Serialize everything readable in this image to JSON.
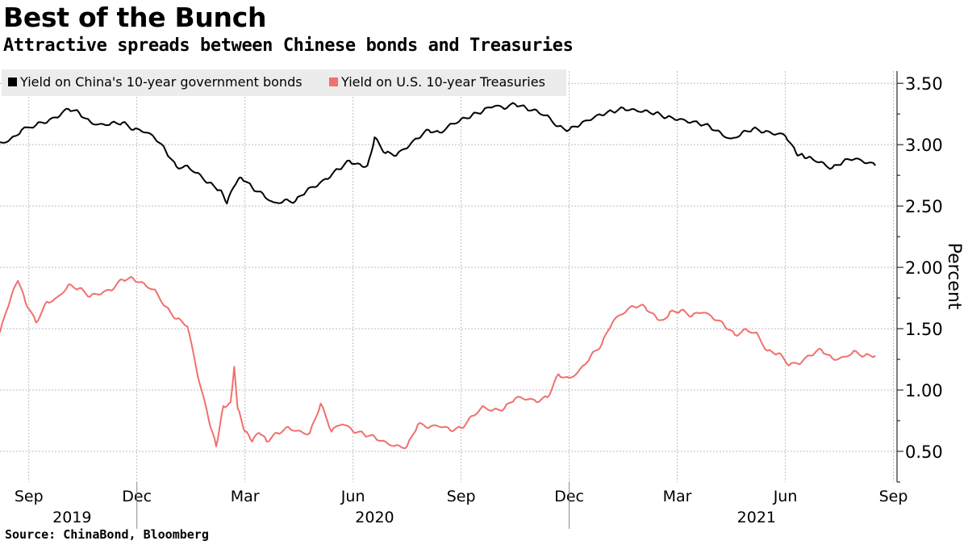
{
  "title": "Best of the Bunch",
  "subtitle": "Attractive spreads between Chinese bonds and Treasuries",
  "source": "Source:  ChinaBond, Bloomberg",
  "colors": {
    "china": "#000000",
    "us": "#f0706e",
    "grid": "#bdbdbd",
    "legend_bg": "#ececec"
  },
  "chart_data": {
    "type": "line",
    "title": "Best of the Bunch",
    "subtitle": "Attractive spreads between Chinese bonds and Treasuries",
    "ylabel": "Percent",
    "ylim": [
      0.25,
      3.6
    ],
    "xlim": [
      -0.3,
      24.6
    ],
    "y_ticks": [
      0.5,
      1.0,
      1.5,
      2.0,
      2.5,
      3.0,
      3.5
    ],
    "y_tick_labels": [
      "0.50",
      "1.00",
      "1.50",
      "2.00",
      "2.50",
      "3.00",
      "3.50"
    ],
    "x_ticks": [
      {
        "label": "Sep",
        "m": 0.5
      },
      {
        "label": "Dec",
        "m": 3.5
      },
      {
        "label": "Mar",
        "m": 6.5
      },
      {
        "label": "Jun",
        "m": 9.5
      },
      {
        "label": "Sep",
        "m": 12.5
      },
      {
        "label": "Dec",
        "m": 15.5
      },
      {
        "label": "Mar",
        "m": 18.5
      },
      {
        "label": "Jun",
        "m": 21.5
      },
      {
        "label": "Sep",
        "m": 24.5
      }
    ],
    "year_labels": [
      {
        "label": "2019",
        "m": 1.7
      },
      {
        "label": "2020",
        "m": 10.1
      },
      {
        "label": "2021",
        "m": 20.7
      }
    ],
    "legend_position": "top-left",
    "series": [
      {
        "name": "Yield on China's 10-year government bonds",
        "color": "#000000",
        "x": [
          -0.3,
          0.0,
          0.3,
          0.7,
          1.0,
          1.3,
          1.6,
          1.9,
          2.2,
          2.5,
          2.8,
          3.1,
          3.4,
          3.7,
          4.0,
          4.3,
          4.6,
          4.9,
          5.2,
          5.5,
          5.8,
          6.0,
          6.2,
          6.4,
          6.7,
          7.0,
          7.3,
          7.6,
          7.9,
          8.2,
          8.5,
          8.8,
          9.1,
          9.4,
          9.7,
          9.9,
          10.1,
          10.4,
          10.7,
          11.0,
          11.3,
          11.6,
          11.9,
          12.2,
          12.5,
          12.8,
          13.1,
          13.4,
          13.7,
          14.0,
          14.3,
          14.6,
          14.9,
          15.2,
          15.5,
          15.8,
          16.1,
          16.4,
          16.7,
          17.0,
          17.3,
          17.6,
          17.9,
          18.2,
          18.5,
          18.8,
          19.1,
          19.4,
          19.7,
          20.0,
          20.3,
          20.6,
          20.9,
          21.2,
          21.5,
          21.8,
          22.0,
          22.2,
          22.5,
          22.8,
          23.1,
          23.4,
          23.7,
          24.0
        ],
        "y": [
          3.02,
          3.05,
          3.12,
          3.16,
          3.18,
          3.22,
          3.29,
          3.26,
          3.19,
          3.17,
          3.18,
          3.18,
          3.12,
          3.1,
          3.05,
          2.95,
          2.82,
          2.83,
          2.77,
          2.69,
          2.63,
          2.52,
          2.66,
          2.73,
          2.65,
          2.6,
          2.53,
          2.55,
          2.54,
          2.62,
          2.66,
          2.72,
          2.8,
          2.87,
          2.84,
          2.83,
          3.06,
          2.93,
          2.91,
          2.97,
          3.05,
          3.12,
          3.1,
          3.17,
          3.21,
          3.24,
          3.27,
          3.31,
          3.29,
          3.33,
          3.3,
          3.28,
          3.24,
          3.15,
          3.12,
          3.16,
          3.2,
          3.24,
          3.27,
          3.3,
          3.29,
          3.28,
          3.26,
          3.22,
          3.2,
          3.18,
          3.17,
          3.15,
          3.1,
          3.05,
          3.1,
          3.13,
          3.1,
          3.08,
          3.07,
          2.93,
          2.91,
          2.9,
          2.86,
          2.81,
          2.86,
          2.88,
          2.85,
          2.83
        ]
      },
      {
        "name": "Yield on U.S. 10-year Treasuries",
        "color": "#f0706e",
        "x": [
          -0.3,
          0.0,
          0.2,
          0.4,
          0.7,
          1.0,
          1.3,
          1.6,
          1.9,
          2.2,
          2.5,
          2.8,
          3.1,
          3.4,
          3.7,
          4.0,
          4.3,
          4.6,
          4.9,
          5.2,
          5.5,
          5.7,
          5.9,
          6.1,
          6.2,
          6.3,
          6.5,
          6.7,
          6.9,
          7.1,
          7.4,
          7.7,
          8.0,
          8.3,
          8.6,
          8.9,
          9.2,
          9.5,
          9.8,
          10.1,
          10.4,
          10.7,
          11.0,
          11.3,
          11.6,
          11.9,
          12.2,
          12.5,
          12.8,
          13.1,
          13.4,
          13.7,
          14.0,
          14.3,
          14.6,
          14.9,
          15.2,
          15.5,
          15.8,
          16.1,
          16.4,
          16.7,
          17.0,
          17.3,
          17.6,
          17.9,
          18.1,
          18.3,
          18.6,
          18.9,
          19.2,
          19.5,
          19.8,
          20.1,
          20.4,
          20.7,
          21.0,
          21.3,
          21.6,
          21.9,
          22.2,
          22.5,
          22.8,
          23.1,
          23.4,
          23.7,
          24.0
        ],
        "y": [
          1.47,
          1.75,
          1.89,
          1.72,
          1.55,
          1.72,
          1.76,
          1.86,
          1.83,
          1.76,
          1.78,
          1.81,
          1.9,
          1.91,
          1.87,
          1.82,
          1.68,
          1.58,
          1.52,
          1.1,
          0.75,
          0.54,
          0.87,
          0.9,
          1.19,
          0.85,
          0.66,
          0.58,
          0.65,
          0.58,
          0.65,
          0.7,
          0.67,
          0.65,
          0.89,
          0.66,
          0.72,
          0.66,
          0.64,
          0.62,
          0.58,
          0.55,
          0.54,
          0.72,
          0.69,
          0.7,
          0.67,
          0.69,
          0.79,
          0.87,
          0.84,
          0.85,
          0.93,
          0.92,
          0.9,
          0.94,
          1.13,
          1.1,
          1.17,
          1.28,
          1.37,
          1.55,
          1.62,
          1.68,
          1.68,
          1.6,
          1.57,
          1.64,
          1.65,
          1.6,
          1.63,
          1.58,
          1.53,
          1.45,
          1.5,
          1.47,
          1.32,
          1.3,
          1.2,
          1.21,
          1.28,
          1.33,
          1.26,
          1.27,
          1.32,
          1.28,
          1.28
        ]
      }
    ]
  }
}
